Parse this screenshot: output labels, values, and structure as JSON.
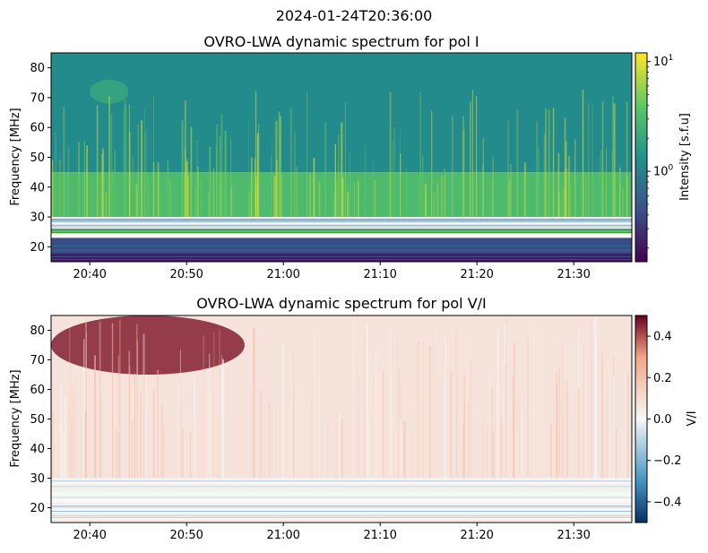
{
  "figure": {
    "suptitle": "2024-01-24T20:36:00"
  },
  "chart_data": [
    {
      "type": "heatmap",
      "title": "OVRO-LWA dynamic spectrum for pol I",
      "xlabel": "",
      "ylabel": "Frequency [MHz]",
      "xlim": [
        "20:36",
        "21:36"
      ],
      "ylim": [
        15,
        85
      ],
      "x_ticks": [
        "20:40",
        "20:50",
        "21:00",
        "21:10",
        "21:20",
        "21:30"
      ],
      "y_ticks": [
        20,
        30,
        40,
        50,
        60,
        70,
        80
      ],
      "colormap": "viridis",
      "colorbar": {
        "label": "Intensity [s.f.u]",
        "scale": "log",
        "range": [
          0.15,
          12
        ],
        "ticks": [
          {
            "value": 1,
            "label": "10",
            "exp": "0"
          },
          {
            "value": 10,
            "label": "10",
            "exp": "1"
          }
        ]
      },
      "features": [
        {
          "freq_range_mhz": [
            15,
            18
          ],
          "intensity_sfu": 0.2
        },
        {
          "freq_range_mhz": [
            18,
            23
          ],
          "intensity_sfu": 0.4
        },
        {
          "freq_range_mhz": [
            24.5,
            26
          ],
          "intensity_sfu": 4.0
        },
        {
          "freq_range_mhz": [
            30,
            45
          ],
          "intensity_sfu": 3.0
        },
        {
          "freq_range_mhz": [
            45,
            85
          ],
          "intensity_sfu": 1.2
        },
        {
          "freq_range_mhz": [
            68,
            76
          ],
          "time_range": [
            "20:40",
            "20:44"
          ],
          "intensity_sfu": 2.0
        }
      ]
    },
    {
      "type": "heatmap",
      "title": "OVRO-LWA dynamic spectrum for pol V/I",
      "xlabel": "",
      "ylabel": "Frequency [MHz]",
      "xlim": [
        "20:36",
        "21:36"
      ],
      "ylim": [
        15,
        85
      ],
      "x_ticks": [
        "20:40",
        "20:50",
        "21:00",
        "21:10",
        "21:20",
        "21:30"
      ],
      "y_ticks": [
        20,
        30,
        40,
        50,
        60,
        70,
        80
      ],
      "colormap": "RdBu_r",
      "colorbar": {
        "label": "V/I",
        "scale": "linear",
        "range": [
          -0.5,
          0.5
        ],
        "ticks": [
          {
            "value": 0.4,
            "label": "0.4"
          },
          {
            "value": 0.2,
            "label": "0.2"
          },
          {
            "value": 0.0,
            "label": "0.0"
          },
          {
            "value": -0.2,
            "label": "−0.2"
          },
          {
            "value": -0.4,
            "label": "−0.4"
          }
        ]
      },
      "features": [
        {
          "freq_range_mhz": [
            15,
            30
          ],
          "v_over_i": 0.0
        },
        {
          "freq_range_mhz": [
            30,
            85
          ],
          "v_over_i": 0.07
        },
        {
          "freq_range_mhz": [
            65,
            85
          ],
          "time_range": [
            "20:36",
            "20:56"
          ],
          "v_over_i": 0.45
        }
      ]
    }
  ]
}
